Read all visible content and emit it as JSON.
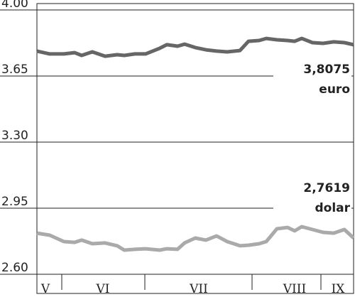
{
  "chart_data": {
    "type": "line",
    "ylim": [
      2.6,
      4.0
    ],
    "yticks": [
      {
        "value": 2.6,
        "label": "2.60"
      },
      {
        "value": 2.95,
        "label": "2.95"
      },
      {
        "value": 3.3,
        "label": "3.30"
      },
      {
        "value": 3.65,
        "label": "3.65"
      },
      {
        "value": 4.0,
        "label": "4.00"
      }
    ],
    "xlim": [
      0,
      446
    ],
    "x": [
      0,
      18,
      38,
      53,
      63,
      78,
      96,
      113,
      123,
      138,
      153,
      173,
      183,
      198,
      208,
      223,
      238,
      253,
      268,
      286,
      298,
      313,
      323,
      338,
      353,
      363,
      373,
      388,
      403,
      418,
      433,
      446
    ],
    "months": [
      "V",
      "VI",
      "VII",
      "VIII",
      "IX"
    ],
    "series": [
      {
        "name": "euro",
        "color": "#666666",
        "value_text": "3,8075",
        "values": [
          3.782,
          3.767,
          3.767,
          3.774,
          3.759,
          3.778,
          3.755,
          3.763,
          3.759,
          3.767,
          3.767,
          3.797,
          3.816,
          3.808,
          3.819,
          3.801,
          3.789,
          3.782,
          3.778,
          3.785,
          3.834,
          3.838,
          3.849,
          3.842,
          3.838,
          3.834,
          3.849,
          3.827,
          3.823,
          3.831,
          3.827,
          3.816
        ]
      },
      {
        "name": "dolar",
        "color": "#aaaaaa",
        "value_text": "2,7619",
        "values": [
          2.818,
          2.807,
          2.773,
          2.769,
          2.781,
          2.762,
          2.766,
          2.751,
          2.728,
          2.732,
          2.735,
          2.728,
          2.735,
          2.732,
          2.766,
          2.792,
          2.781,
          2.803,
          2.773,
          2.751,
          2.754,
          2.762,
          2.773,
          2.841,
          2.848,
          2.83,
          2.852,
          2.837,
          2.822,
          2.818,
          2.837,
          2.792
        ]
      }
    ]
  }
}
